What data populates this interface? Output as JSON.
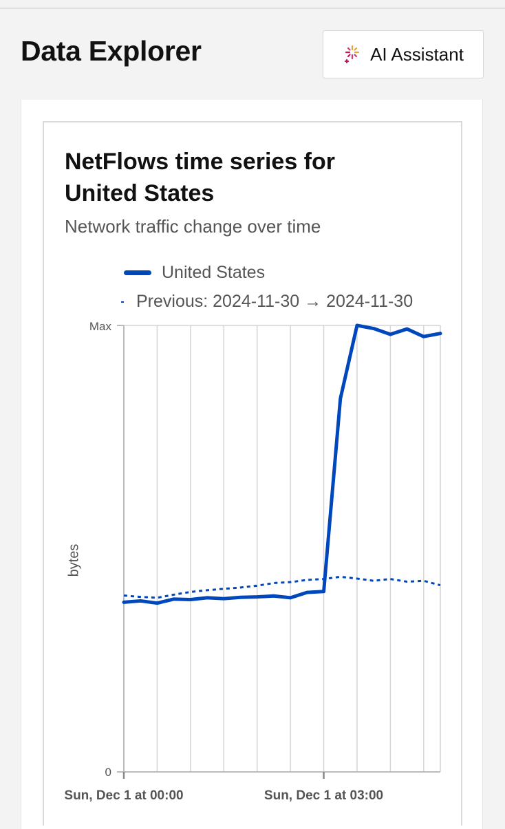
{
  "header": {
    "title": "Data Explorer",
    "ai_button_label": "AI Assistant",
    "ai_icon": "sparkle-icon"
  },
  "card": {
    "title": "NetFlows time series for United States",
    "subtitle": "Network traffic change over time"
  },
  "chart_data": {
    "type": "line",
    "title": "NetFlows time series for United States",
    "subtitle": "Network traffic change over time",
    "ylabel": "bytes",
    "xlabel": "",
    "y_tick_labels": [
      "0",
      "Max"
    ],
    "x_tick_labels": [
      "Sun, Dec 1 at 00:00",
      "Sun, Dec 1 at 03:00"
    ],
    "x_unit": "hours since Sun, Dec 1 00:00",
    "ylim": [
      0,
      1
    ],
    "y_scale_note": "normalized fraction of Max",
    "x": [
      0,
      0.25,
      0.5,
      0.75,
      1,
      1.25,
      1.5,
      1.75,
      2,
      2.25,
      2.5,
      2.75,
      3,
      3.25,
      3.5,
      3.75,
      4,
      4.25,
      4.5,
      4.75
    ],
    "series": [
      {
        "name": "United States",
        "style": "solid",
        "color": "#0047bb",
        "values": [
          0.38,
          0.383,
          0.378,
          0.387,
          0.386,
          0.39,
          0.388,
          0.391,
          0.392,
          0.394,
          0.39,
          0.402,
          0.404,
          0.836,
          1.0,
          0.993,
          0.98,
          0.992,
          0.975,
          0.982
        ]
      },
      {
        "name": "Previous: 2024-11-30 → 2024-11-30",
        "style": "dashed",
        "color": "#0047bb",
        "values": [
          0.395,
          0.392,
          0.39,
          0.397,
          0.403,
          0.407,
          0.41,
          0.413,
          0.417,
          0.423,
          0.425,
          0.43,
          0.432,
          0.437,
          0.433,
          0.428,
          0.432,
          0.426,
          0.428,
          0.418
        ]
      }
    ],
    "grid": true,
    "legend_position": "top-left",
    "colors": {
      "line": "#0047bb",
      "grid": "#d4d4d4",
      "axis": "#bbbbbb"
    }
  }
}
